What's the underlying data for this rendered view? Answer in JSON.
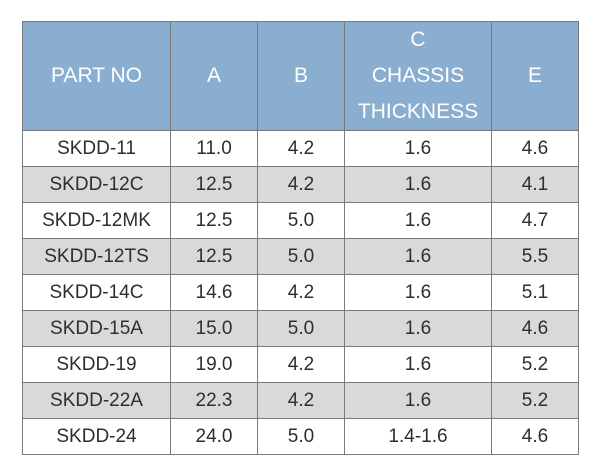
{
  "table": {
    "headers": {
      "part_no": "PART NO",
      "a": "A",
      "b": "B",
      "c_letter": "C",
      "c_line1": "CHASSIS",
      "c_line2": "THICKNESS",
      "e": "E"
    },
    "rows": [
      {
        "part_no": "SKDD-11",
        "a": "11.0",
        "b": "4.2",
        "c": "1.6",
        "e": "4.6"
      },
      {
        "part_no": "SKDD-12C",
        "a": "12.5",
        "b": "4.2",
        "c": "1.6",
        "e": "4.1"
      },
      {
        "part_no": "SKDD-12MK",
        "a": "12.5",
        "b": "5.0",
        "c": "1.6",
        "e": "4.7"
      },
      {
        "part_no": "SKDD-12TS",
        "a": "12.5",
        "b": "5.0",
        "c": "1.6",
        "e": "5.5"
      },
      {
        "part_no": "SKDD-14C",
        "a": "14.6",
        "b": "4.2",
        "c": "1.6",
        "e": "5.1"
      },
      {
        "part_no": "SKDD-15A",
        "a": "15.0",
        "b": "5.0",
        "c": "1.6",
        "e": "4.6"
      },
      {
        "part_no": "SKDD-19",
        "a": "19.0",
        "b": "4.2",
        "c": "1.6",
        "e": "5.2"
      },
      {
        "part_no": "SKDD-22A",
        "a": "22.3",
        "b": "4.2",
        "c": "1.6",
        "e": "5.2"
      },
      {
        "part_no": "SKDD-24",
        "a": "24.0",
        "b": "5.0",
        "c": "1.4-1.6",
        "e": "4.6"
      }
    ]
  },
  "colors": {
    "header_bg": "#8aaed0",
    "header_text": "#ffffff",
    "alt_row_bg": "#d9d9d9",
    "border": "#7a7a7a"
  }
}
